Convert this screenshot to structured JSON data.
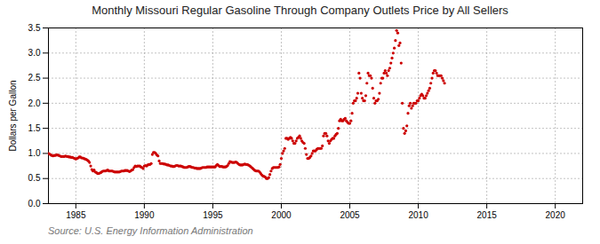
{
  "chart_data": {
    "type": "scatter",
    "title": "Monthly Missouri Regular Gasoline Through Company Outlets Price by All Sellers",
    "y_label": "Dollars per Gallon",
    "annotations": [
      "Source: U.S. Energy Information Administration"
    ],
    "color": "#cc0000",
    "grid": true,
    "xlim": [
      1983.0,
      2022.0
    ],
    "ylim": [
      0.0,
      3.5
    ],
    "xticks": [
      1985,
      1990,
      1995,
      2000,
      2005,
      2010,
      2015,
      2020
    ],
    "yticks": [
      {
        "value": 0.0,
        "label": "0.0"
      },
      0.5,
      {
        "value": 1.0,
        "label": "1.0"
      },
      1.5,
      {
        "value": 2.0,
        "label": "2.0"
      },
      2.5,
      {
        "value": 3.0,
        "label": "3.0"
      },
      3.5
    ],
    "x": [
      1983,
      1983.0833333333,
      1983.1666666667,
      1983.25,
      1983.3333333333,
      1983.4166666667,
      1983.5,
      1983.5833333333,
      1983.6666666667,
      1983.75,
      1983.8333333333,
      1983.9166666667,
      1984,
      1984.0833333333,
      1984.1666666667,
      1984.25,
      1984.3333333333,
      1984.4166666667,
      1984.5,
      1984.5833333333,
      1984.6666666667,
      1984.75,
      1984.8333333333,
      1984.9166666667,
      1985,
      1985.0833333333,
      1985.1666666667,
      1985.25,
      1985.3333333333,
      1985.4166666667,
      1985.5,
      1985.5833333333,
      1985.6666666667,
      1985.75,
      1985.8333333333,
      1985.9166666667,
      1986,
      1986.0833333333,
      1986.1666666667,
      1986.25,
      1986.3333333333,
      1986.4166666667,
      1986.5,
      1986.5833333333,
      1986.6666666667,
      1986.75,
      1986.8333333333,
      1986.9166666667,
      1987,
      1987.0833333333,
      1987.1666666667,
      1987.25,
      1987.3333333333,
      1987.4166666667,
      1987.5,
      1987.5833333333,
      1987.6666666667,
      1987.75,
      1987.8333333333,
      1987.9166666667,
      1988,
      1988.0833333333,
      1988.1666666667,
      1988.25,
      1988.3333333333,
      1988.4166666667,
      1988.5,
      1988.5833333333,
      1988.6666666667,
      1988.75,
      1988.8333333333,
      1988.9166666667,
      1989,
      1989.0833333333,
      1989.1666666667,
      1989.25,
      1989.3333333333,
      1989.4166666667,
      1989.5,
      1989.5833333333,
      1989.6666666667,
      1989.75,
      1989.8333333333,
      1989.9166666667,
      1990,
      1990.0833333333,
      1990.1666666667,
      1990.25,
      1990.3333333333,
      1990.4166666667,
      1990.5,
      1990.5833333333,
      1990.6666666667,
      1990.75,
      1990.8333333333,
      1990.9166666667,
      1991,
      1991.0833333333,
      1991.1666666667,
      1991.25,
      1991.3333333333,
      1991.4166666667,
      1991.5,
      1991.5833333333,
      1991.6666666667,
      1991.75,
      1991.8333333333,
      1991.9166666667,
      1992,
      1992.0833333333,
      1992.1666666667,
      1992.25,
      1992.3333333333,
      1992.4166666667,
      1992.5,
      1992.5833333333,
      1992.6666666667,
      1992.75,
      1992.8333333333,
      1992.9166666667,
      1993,
      1993.0833333333,
      1993.1666666667,
      1993.25,
      1993.3333333333,
      1993.4166666667,
      1993.5,
      1993.5833333333,
      1993.6666666667,
      1993.75,
      1993.8333333333,
      1993.9166666667,
      1994,
      1994.0833333333,
      1994.1666666667,
      1994.25,
      1994.3333333333,
      1994.4166666667,
      1994.5,
      1994.5833333333,
      1994.6666666667,
      1994.75,
      1994.8333333333,
      1994.9166666667,
      1995,
      1995.0833333333,
      1995.1666666667,
      1995.25,
      1995.3333333333,
      1995.4166666667,
      1995.5,
      1995.5833333333,
      1995.6666666667,
      1995.75,
      1995.8333333333,
      1995.9166666667,
      1996,
      1996.0833333333,
      1996.1666666667,
      1996.25,
      1996.3333333333,
      1996.4166666667,
      1996.5,
      1996.5833333333,
      1996.6666666667,
      1996.75,
      1996.8333333333,
      1996.9166666667,
      1997,
      1997.0833333333,
      1997.1666666667,
      1997.25,
      1997.3333333333,
      1997.4166666667,
      1997.5,
      1997.5833333333,
      1997.6666666667,
      1997.75,
      1997.8333333333,
      1997.9166666667,
      1998,
      1998.0833333333,
      1998.1666666667,
      1998.25,
      1998.3333333333,
      1998.4166666667,
      1998.5,
      1998.5833333333,
      1998.6666666667,
      1998.75,
      1998.8333333333,
      1998.9166666667,
      1999,
      1999.0833333333,
      1999.1666666667,
      1999.25,
      1999.3333333333,
      1999.4166666667,
      1999.5,
      1999.5833333333,
      1999.6666666667,
      1999.75,
      1999.8333333333,
      1999.9166666667,
      2000,
      2000.0833333333,
      2000.1666666667,
      2000.25,
      2000.3333333333,
      2000.4166666667,
      2000.5,
      2000.5833333333,
      2000.6666666667,
      2000.75,
      2000.8333333333,
      2000.9166666667,
      2001,
      2001.0833333333,
      2001.1666666667,
      2001.25,
      2001.3333333333,
      2001.4166666667,
      2001.5,
      2001.5833333333,
      2001.6666666667,
      2001.75,
      2001.8333333333,
      2001.9166666667,
      2002,
      2002.0833333333,
      2002.1666666667,
      2002.25,
      2002.3333333333,
      2002.4166666667,
      2002.5,
      2002.5833333333,
      2002.6666666667,
      2002.75,
      2002.8333333333,
      2002.9166666667,
      2003,
      2003.0833333333,
      2003.1666666667,
      2003.25,
      2003.3333333333,
      2003.4166666667,
      2003.5,
      2003.5833333333,
      2003.6666666667,
      2003.75,
      2003.8333333333,
      2003.9166666667,
      2004,
      2004.0833333333,
      2004.1666666667,
      2004.25,
      2004.3333333333,
      2004.4166666667,
      2004.5,
      2004.5833333333,
      2004.6666666667,
      2004.75,
      2004.8333333333,
      2004.9166666667,
      2005,
      2005.0833333333,
      2005.1666666667,
      2005.25,
      2005.3333333333,
      2005.4166666667,
      2005.5,
      2005.5833333333,
      2005.6666666667,
      2005.75,
      2005.8333333333,
      2005.9166666667,
      2006,
      2006.0833333333,
      2006.1666666667,
      2006.25,
      2006.3333333333,
      2006.4166666667,
      2006.5,
      2006.5833333333,
      2006.6666666667,
      2006.75,
      2006.8333333333,
      2006.9166666667,
      2007,
      2007.0833333333,
      2007.1666666667,
      2007.25,
      2007.3333333333,
      2007.4166666667,
      2007.5,
      2007.5833333333,
      2007.6666666667,
      2007.75,
      2007.8333333333,
      2007.9166666667,
      2008,
      2008.0833333333,
      2008.1666666667,
      2008.25,
      2008.3333333333,
      2008.4166666667,
      2008.5,
      2008.5833333333,
      2008.6666666667,
      2008.75,
      2008.8333333333,
      2008.9166666667,
      2009,
      2009.0833333333,
      2009.1666666667,
      2009.25,
      2009.3333333333,
      2009.4166666667,
      2009.5,
      2009.5833333333,
      2009.6666666667,
      2009.75,
      2009.8333333333,
      2009.9166666667,
      2010,
      2010.0833333333,
      2010.1666666667,
      2010.25,
      2010.3333333333,
      2010.4166666667,
      2010.5,
      2010.5833333333,
      2010.6666666667,
      2010.75,
      2010.8333333333,
      2010.9166666667,
      2011,
      2011.0833333333,
      2011.1666666667,
      2011.25,
      2011.3333333333,
      2011.4166666667,
      2011.5,
      2011.5833333333,
      2011.6666666667,
      2011.75,
      2011.8333333333,
      2011.9166666667
    ],
    "values": [
      1.0,
      0.99,
      0.97,
      0.96,
      0.95,
      0.96,
      0.96,
      0.97,
      0.97,
      0.96,
      0.95,
      0.94,
      0.94,
      0.94,
      0.94,
      0.95,
      0.94,
      0.94,
      0.93,
      0.93,
      0.92,
      0.92,
      0.91,
      0.9,
      0.89,
      0.9,
      0.91,
      0.93,
      0.93,
      0.91,
      0.91,
      0.9,
      0.89,
      0.88,
      0.87,
      0.85,
      0.82,
      0.75,
      0.68,
      0.65,
      0.67,
      0.63,
      0.62,
      0.6,
      0.6,
      0.61,
      0.62,
      0.64,
      0.65,
      0.65,
      0.65,
      0.66,
      0.67,
      0.65,
      0.65,
      0.65,
      0.65,
      0.64,
      0.63,
      0.63,
      0.63,
      0.63,
      0.63,
      0.64,
      0.65,
      0.65,
      0.65,
      0.66,
      0.66,
      0.66,
      0.65,
      0.64,
      0.65,
      0.67,
      0.68,
      0.72,
      0.75,
      0.74,
      0.75,
      0.75,
      0.75,
      0.73,
      0.72,
      0.7,
      0.75,
      0.76,
      0.75,
      0.77,
      0.78,
      0.78,
      0.8,
      0.98,
      1.02,
      1.02,
      1.0,
      0.97,
      0.95,
      0.85,
      0.8,
      0.8,
      0.8,
      0.79,
      0.79,
      0.78,
      0.77,
      0.77,
      0.76,
      0.75,
      0.75,
      0.74,
      0.74,
      0.75,
      0.76,
      0.76,
      0.75,
      0.75,
      0.75,
      0.74,
      0.73,
      0.72,
      0.72,
      0.72,
      0.73,
      0.74,
      0.74,
      0.73,
      0.72,
      0.72,
      0.71,
      0.71,
      0.7,
      0.7,
      0.7,
      0.7,
      0.71,
      0.72,
      0.72,
      0.72,
      0.72,
      0.73,
      0.73,
      0.73,
      0.73,
      0.73,
      0.73,
      0.73,
      0.73,
      0.76,
      0.78,
      0.76,
      0.74,
      0.74,
      0.74,
      0.73,
      0.73,
      0.73,
      0.74,
      0.76,
      0.8,
      0.84,
      0.83,
      0.82,
      0.82,
      0.82,
      0.83,
      0.82,
      0.8,
      0.78,
      0.77,
      0.77,
      0.77,
      0.78,
      0.79,
      0.78,
      0.78,
      0.77,
      0.76,
      0.74,
      0.72,
      0.7,
      0.68,
      0.66,
      0.65,
      0.65,
      0.65,
      0.63,
      0.6,
      0.57,
      0.55,
      0.54,
      0.53,
      0.5,
      0.5,
      0.52,
      0.58,
      0.65,
      0.7,
      0.72,
      0.72,
      0.72,
      0.72,
      0.72,
      0.73,
      0.78,
      0.9,
      1.0,
      1.05,
      1.1,
      1.3,
      1.3,
      1.28,
      1.3,
      1.32,
      1.3,
      1.25,
      1.2,
      1.2,
      1.25,
      1.3,
      1.32,
      1.35,
      1.3,
      1.25,
      1.22,
      1.2,
      1.1,
      0.98,
      0.9,
      0.9,
      0.92,
      0.95,
      1.0,
      1.05,
      1.05,
      1.05,
      1.08,
      1.1,
      1.1,
      1.1,
      1.1,
      1.15,
      1.35,
      1.4,
      1.4,
      1.35,
      1.25,
      1.2,
      1.25,
      1.28,
      1.3,
      1.3,
      1.35,
      1.38,
      1.4,
      1.5,
      1.65,
      1.68,
      1.65,
      1.65,
      1.68,
      1.7,
      1.65,
      1.62,
      1.6,
      1.6,
      1.65,
      1.8,
      2.0,
      2.05,
      2.05,
      2.1,
      2.2,
      2.6,
      2.5,
      2.2,
      2.1,
      2.05,
      2.05,
      2.15,
      2.4,
      2.6,
      2.55,
      2.55,
      2.5,
      2.3,
      2.1,
      2.0,
      2.05,
      2.05,
      2.08,
      2.2,
      2.4,
      2.5,
      2.5,
      2.6,
      2.65,
      2.6,
      2.55,
      2.65,
      2.7,
      2.8,
      2.9,
      3.0,
      3.1,
      3.25,
      3.45,
      3.4,
      3.15,
      3.2,
      2.8,
      2.0,
      1.5,
      1.4,
      1.45,
      1.55,
      1.8,
      1.95,
      2.0,
      1.9,
      1.95,
      2.0,
      2.0,
      2.0,
      2.05,
      2.05,
      2.1,
      2.15,
      2.18,
      2.15,
      2.1,
      2.1,
      2.15,
      2.2,
      2.25,
      2.3,
      2.4,
      2.5,
      2.6,
      2.65,
      2.65,
      2.6,
      2.55,
      2.55,
      2.55,
      2.55,
      2.5,
      2.45,
      2.4
    ]
  }
}
